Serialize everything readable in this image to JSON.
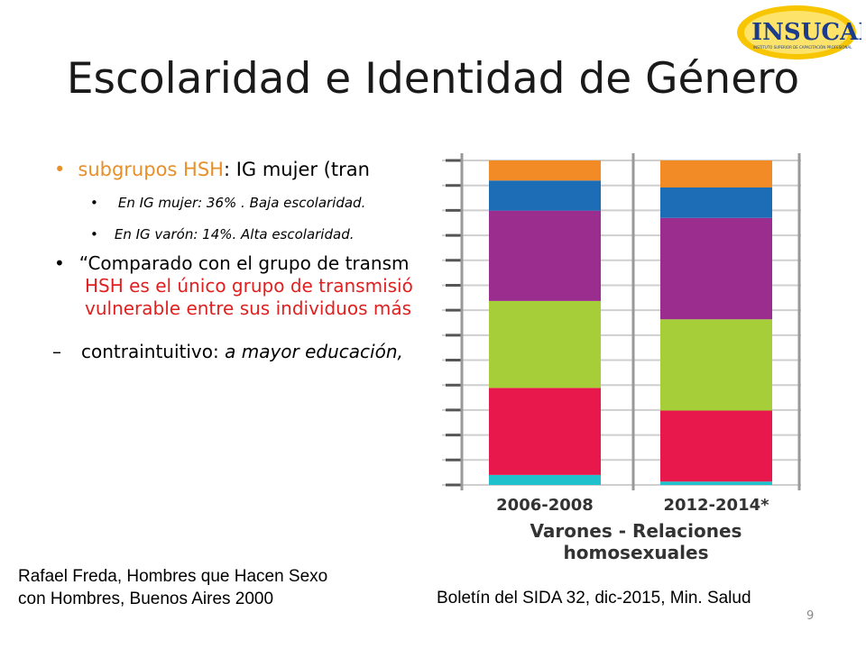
{
  "logo": {
    "text": "INSUCAP",
    "subtitle": "INSTITUTO SUPERIOR DE CAPACITACIÓN PROFESIONAL"
  },
  "title": "Escolaridad e Identidad de Género",
  "bullets": {
    "b1_highlight": "subgrupos HSH",
    "b1_rest": ": IG mujer (tran",
    "b2": "En IG mujer: 36% . Baja escolaridad.",
    "b3": "En IG varón: 14%.  Alta escolaridad.",
    "b4_line1": "“Comparado con el grupo de transm",
    "b4_line2": "HSH es el único grupo de transmisió",
    "b4_line3": "vulnerable entre sus individuos más",
    "b5_dash": "–",
    "b5_text": "contraintuitivo: ",
    "b5_italic": "a mayor educación,"
  },
  "chart_data": {
    "type": "bar",
    "stacked": true,
    "categories": [
      "2006-2008",
      "2012-2014*"
    ],
    "caption_line1": "Varones - Relaciones",
    "caption_line2": "homosexuales",
    "series": [
      {
        "color": "#1fc1cc",
        "values": [
          3,
          1
        ]
      },
      {
        "color": "#e8174c",
        "values": [
          26,
          21
        ]
      },
      {
        "color": "#a6ce39",
        "values": [
          26,
          27
        ]
      },
      {
        "color": "#9b2d8f",
        "values": [
          27,
          30
        ]
      },
      {
        "color": "#1c6db6",
        "values": [
          9,
          9
        ]
      },
      {
        "color": "#f28a26",
        "values": [
          6,
          8
        ]
      }
    ]
  },
  "citations": {
    "left_line1": "Rafael Freda, Hombres que Hacen Sexo",
    "left_line2": "con Hombres, Buenos Aires 2000",
    "right": "Boletín del SIDA 32, dic-2015, Min. Salud"
  },
  "page_number": "9"
}
